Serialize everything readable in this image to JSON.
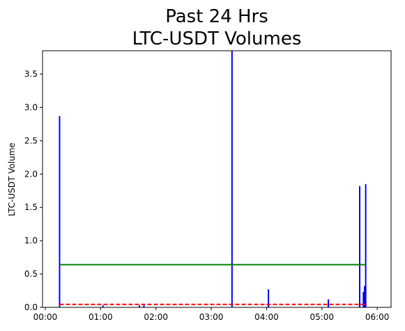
{
  "chart_data": {
    "type": "bar",
    "title": [
      "Past 24 Hrs",
      "LTC-USDT Volumes"
    ],
    "xlabel": "",
    "ylabel": "LTC-USDT Volume",
    "x_domain_minutes": [
      -3,
      375
    ],
    "ylim": [
      0,
      3.85
    ],
    "x_ticks": [
      {
        "label": "00:00",
        "minutes": 0
      },
      {
        "label": "01:00",
        "minutes": 60
      },
      {
        "label": "02:00",
        "minutes": 120
      },
      {
        "label": "03:00",
        "minutes": 180
      },
      {
        "label": "04:00",
        "minutes": 240
      },
      {
        "label": "05:00",
        "minutes": 300
      },
      {
        "label": "06:00",
        "minutes": 360
      }
    ],
    "y_ticks": [
      0.0,
      0.5,
      1.0,
      1.5,
      2.0,
      2.5,
      3.0,
      3.5
    ],
    "y_tick_labels": [
      "0.0",
      "0.5",
      "1.0",
      "1.5",
      "2.0",
      "2.5",
      "3.0",
      "3.5"
    ],
    "bars": [
      {
        "time": "00:15",
        "minutes": 15.5,
        "value": 2.87
      },
      {
        "time": "01:02",
        "minutes": 62.5,
        "value": 0.03
      },
      {
        "time": "01:42",
        "minutes": 102.0,
        "value": 0.03
      },
      {
        "time": "01:47",
        "minutes": 107.0,
        "value": 0.03
      },
      {
        "time": "03:22",
        "minutes": 202.5,
        "value": 3.85
      },
      {
        "time": "04:02",
        "minutes": 242.0,
        "value": 0.27
      },
      {
        "time": "05:07",
        "minutes": 307.0,
        "value": 0.12
      },
      {
        "time": "05:41",
        "minutes": 341.0,
        "value": 1.82
      },
      {
        "time": "05:45",
        "minutes": 345.0,
        "value": 0.23
      },
      {
        "time": "05:46",
        "minutes": 346.2,
        "value": 0.32
      },
      {
        "time": "05:47",
        "minutes": 347.5,
        "value": 1.85
      }
    ],
    "bar_color": "#0000ff",
    "lines": [
      {
        "kind": "mean",
        "value": 0.64,
        "x_start": 15.5,
        "x_end": 347.5,
        "color": "#008000",
        "style": "solid"
      },
      {
        "kind": "threshold",
        "value": 0.045,
        "x_start": 15.5,
        "x_end": 347.5,
        "color": "#ff0000",
        "style": "dashed"
      }
    ],
    "grid": false,
    "legend": "none"
  }
}
